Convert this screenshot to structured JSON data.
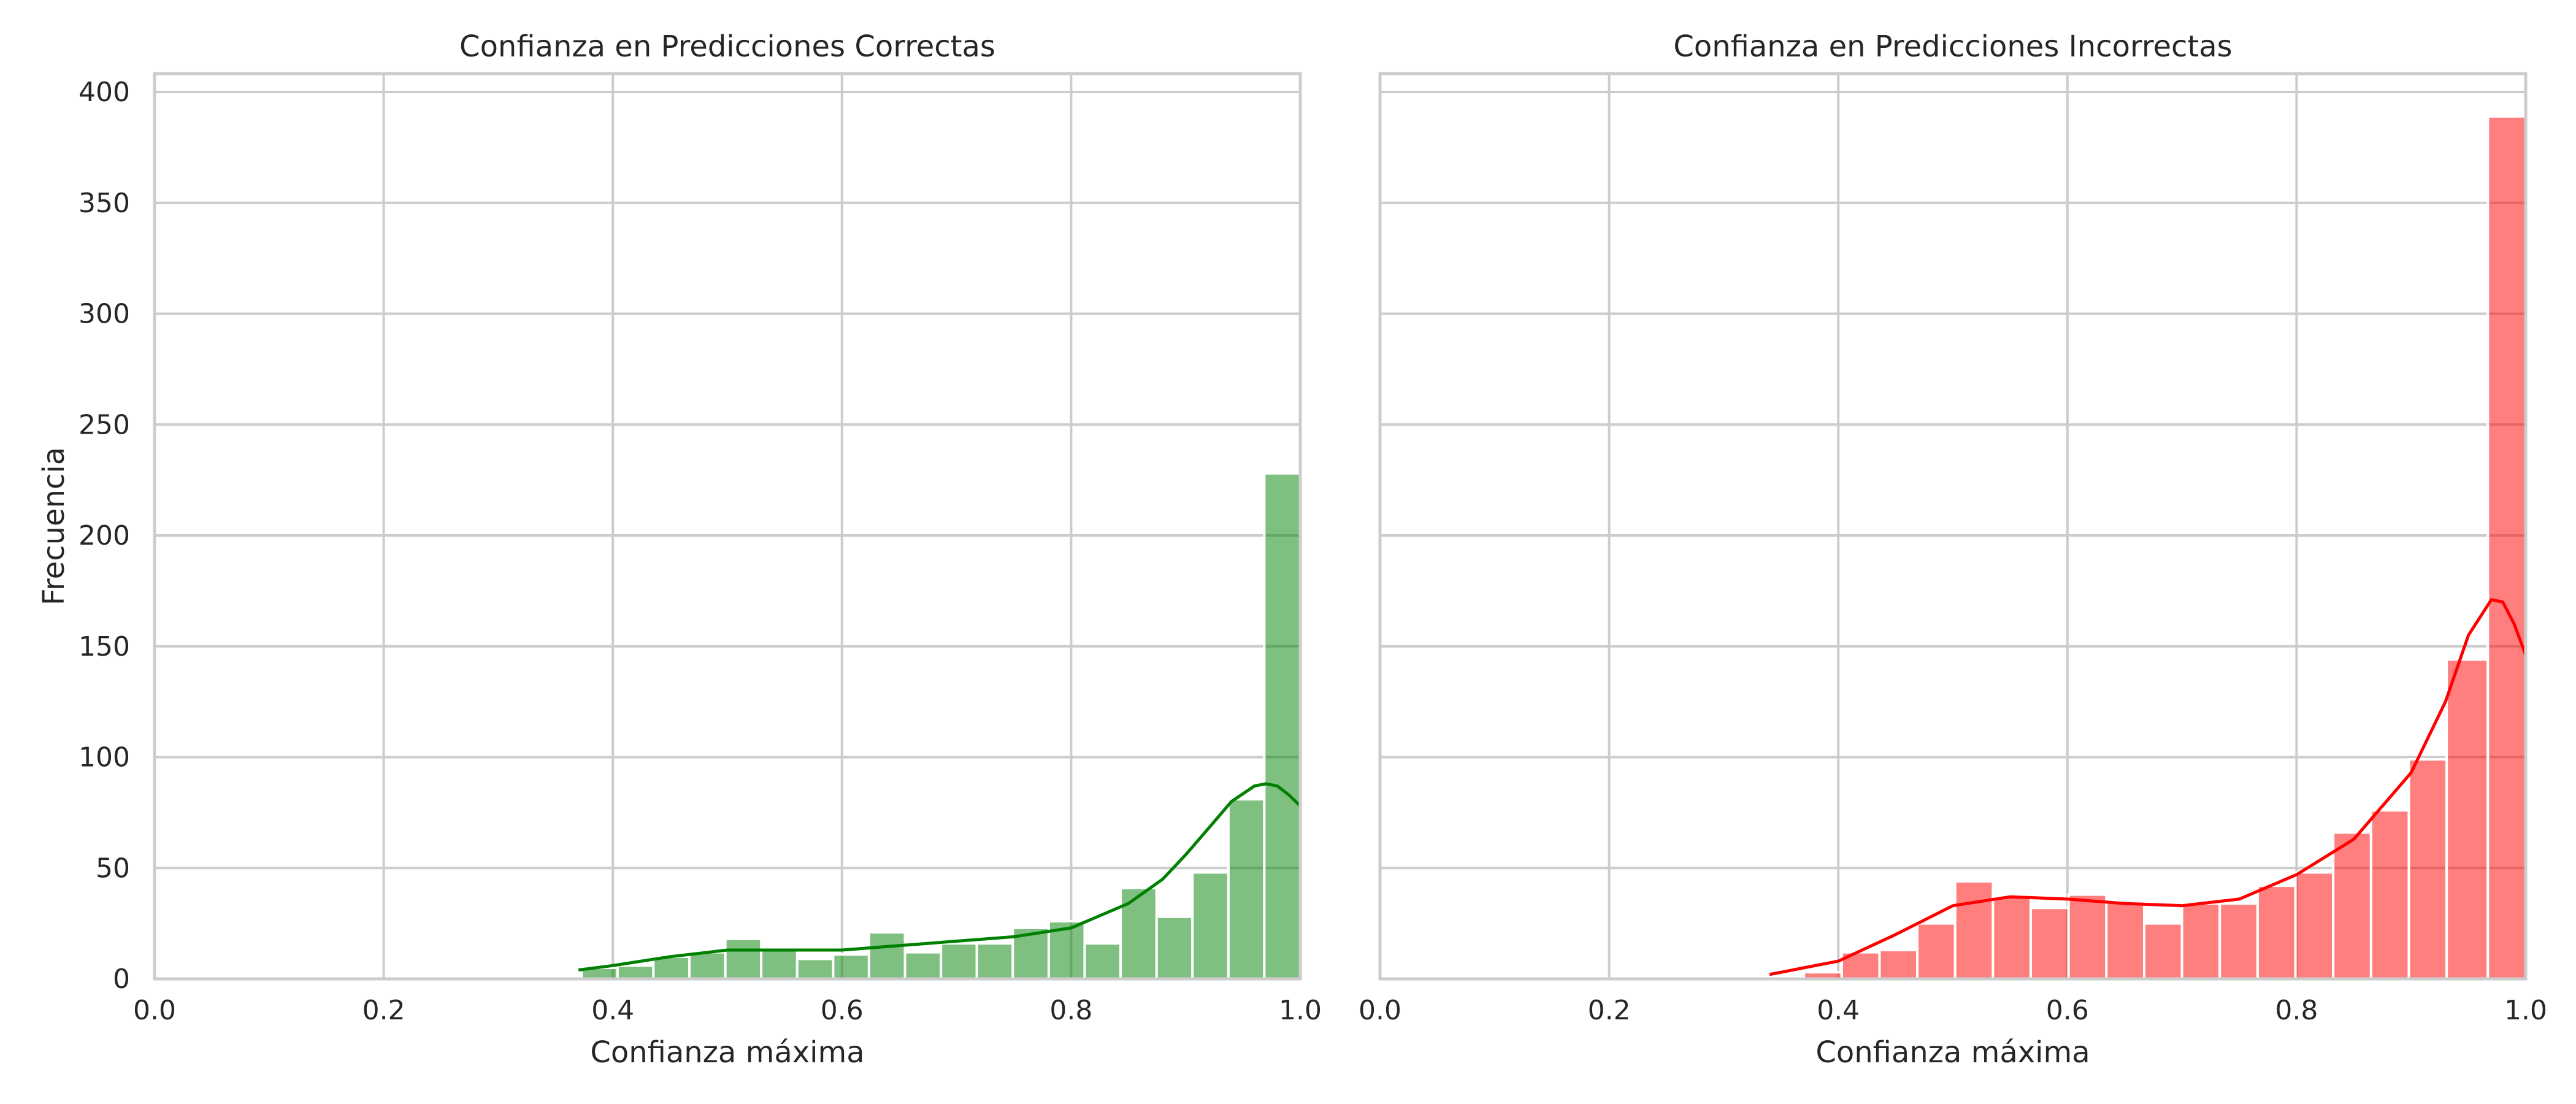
{
  "colors": {
    "correct": "#008000",
    "incorrect": "#ff0000",
    "grid": "#cccccc",
    "frame": "#cccccc"
  },
  "chart_data": [
    {
      "type": "histogram",
      "title": "Confianza en Predicciones Correctas",
      "xlabel": "Confianza máxima",
      "ylabel": "Frecuencia",
      "xlim": [
        0,
        1
      ],
      "ylim": [
        0,
        410
      ],
      "xticks": [
        "0.0",
        "0.2",
        "0.4",
        "0.6",
        "0.8",
        "1.0"
      ],
      "yticks": [
        "0",
        "50",
        "100",
        "150",
        "200",
        "250",
        "300",
        "350",
        "400"
      ],
      "grid": true,
      "color": "correct",
      "bin_edges": [
        0.3727,
        0.4041,
        0.4354,
        0.4668,
        0.4982,
        0.5295,
        0.5609,
        0.5923,
        0.6236,
        0.655,
        0.6864,
        0.7177,
        0.7491,
        0.7805,
        0.8118,
        0.8432,
        0.8746,
        0.9059,
        0.9373,
        0.9686,
        1.0
      ],
      "counts": [
        5,
        6,
        10,
        12,
        18,
        13,
        9,
        11,
        21,
        12,
        16,
        16,
        23,
        26,
        16,
        41,
        28,
        48,
        81,
        228
      ],
      "kde": {
        "x": [
          0.37,
          0.4,
          0.45,
          0.5,
          0.55,
          0.6,
          0.65,
          0.7,
          0.75,
          0.8,
          0.85,
          0.88,
          0.9,
          0.92,
          0.94,
          0.96,
          0.97,
          0.98,
          0.99,
          1.0
        ],
        "y": [
          4,
          6,
          10,
          13,
          13,
          13,
          15,
          17,
          19,
          23,
          34,
          45,
          56,
          68,
          80,
          87,
          88,
          87,
          83,
          78
        ]
      }
    },
    {
      "type": "histogram",
      "title": "Confianza en Predicciones Incorrectas",
      "xlabel": "Confianza máxima",
      "ylabel": "",
      "xlim": [
        0,
        1
      ],
      "ylim": [
        0,
        410
      ],
      "xticks": [
        "0.0",
        "0.2",
        "0.4",
        "0.6",
        "0.8",
        "1.0"
      ],
      "yticks": [
        "0",
        "50",
        "100",
        "150",
        "200",
        "250",
        "300",
        "350",
        "400"
      ],
      "grid": true,
      "color": "incorrect",
      "bin_edges": [
        0.34,
        0.37,
        0.403,
        0.436,
        0.469,
        0.502,
        0.535,
        0.568,
        0.601,
        0.634,
        0.667,
        0.7,
        0.733,
        0.766,
        0.799,
        0.832,
        0.865,
        0.898,
        0.931,
        0.967,
        1.0
      ],
      "counts": [
        1,
        3,
        12,
        13,
        25,
        44,
        37,
        32,
        38,
        35,
        25,
        34,
        34,
        42,
        48,
        66,
        76,
        99,
        144,
        389
      ],
      "kde": {
        "x": [
          0.34,
          0.4,
          0.45,
          0.5,
          0.55,
          0.6,
          0.65,
          0.7,
          0.75,
          0.8,
          0.85,
          0.9,
          0.93,
          0.95,
          0.97,
          0.98,
          0.99,
          1.0
        ],
        "y": [
          2,
          8,
          20,
          33,
          37,
          36,
          34,
          33,
          36,
          47,
          63,
          93,
          125,
          155,
          171,
          170,
          160,
          146
        ]
      }
    }
  ]
}
